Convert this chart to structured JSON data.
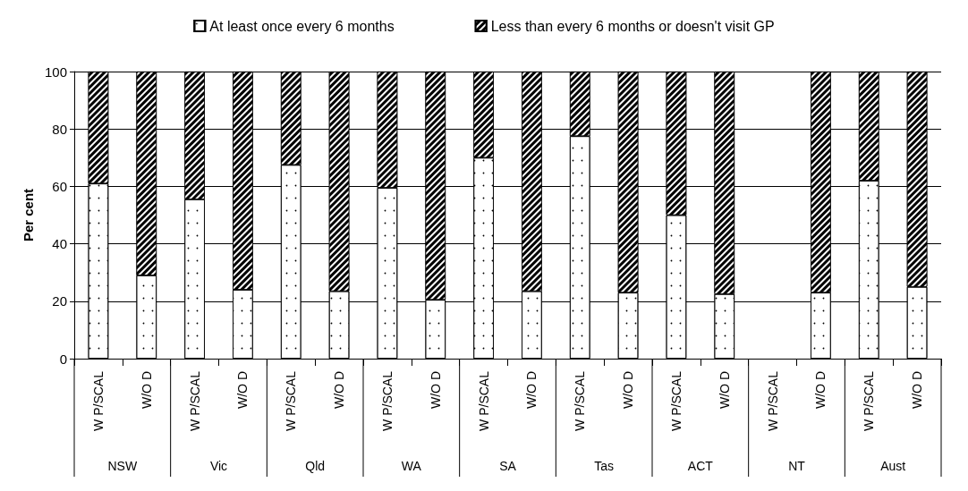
{
  "chart_data": {
    "type": "bar",
    "stacked": true,
    "ylabel": "Per cent",
    "categories": [
      "W P/SCAL",
      "W/O D",
      "W P/SCAL",
      "W/O D",
      "W P/SCAL",
      "W/O D",
      "W P/SCAL",
      "W/O D",
      "W P/SCAL",
      "W/O D",
      "W P/SCAL",
      "W/O D",
      "W P/SCAL",
      "W/O D",
      "W P/SCAL",
      "W/O D",
      "W P/SCAL",
      "W/O D"
    ],
    "annotations": [
      "NSW",
      "Vic",
      "Qld",
      "WA",
      "SA",
      "Tas",
      "ACT",
      "NT",
      "Aust"
    ],
    "series": [
      {
        "name": "At least once every 6 months",
        "color": "#ffffff",
        "values": [
          61,
          29,
          55.5,
          24,
          67.5,
          23.5,
          59.5,
          20.5,
          70,
          23.5,
          77.5,
          23,
          50,
          22.5,
          null,
          23,
          62,
          25
        ]
      },
      {
        "name": "Less than every 6 months or doesn't visit GP",
        "color": "#000000",
        "values": [
          39,
          71,
          44.5,
          76,
          32.5,
          76.5,
          40.5,
          79.5,
          30,
          76.5,
          22.5,
          77,
          50,
          77.5,
          null,
          77,
          38,
          75
        ]
      }
    ],
    "ylim": [
      0,
      100
    ],
    "yticks": [
      0,
      20,
      40,
      60,
      80,
      100
    ],
    "grid": "y",
    "legend": "top"
  }
}
